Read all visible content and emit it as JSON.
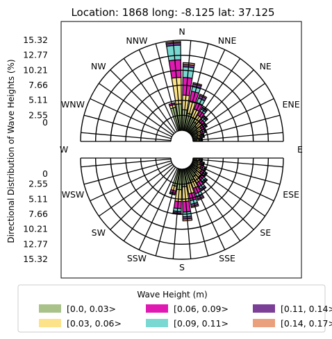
{
  "chart_data": {
    "type": "polar-stacked-bar",
    "title": "Location: 1868 long: -8.125 lat: 37.125",
    "ylabel": "Directional Distribution of Wave Heights (%)",
    "radial_ticks": [
      "0",
      "2.55",
      "5.11",
      "7.66",
      "10.21",
      "12.77",
      "15.32"
    ],
    "radial_max": 15.32,
    "inner_hole_fraction": 0.11,
    "directions": [
      "N",
      "NNE",
      "NE",
      "ENE",
      "E",
      "ESE",
      "SE",
      "SSE",
      "S",
      "SSW",
      "SW",
      "WSW",
      "W",
      "WNW",
      "NW",
      "NNW"
    ],
    "sectors_per_ring": 36,
    "legend": {
      "title": "Wave Height (m)",
      "placement": "bottom",
      "entries": [
        {
          "label": "[0.0, 0.03>",
          "color": "#a8c28a"
        },
        {
          "label": "[0.03, 0.06>",
          "color": "#fce38a"
        },
        {
          "label": "[0.06, 0.09>",
          "color": "#e019b2"
        },
        {
          "label": "[0.09, 0.11>",
          "color": "#79d9d2"
        },
        {
          "label": "[0.11, 0.14>",
          "color": "#7b3f98"
        },
        {
          "label": "[0.14, 0.17>",
          "color": "#eaa07c"
        }
      ]
    },
    "series_colors": [
      "#a8c28a",
      "#fce38a",
      "#e019b2",
      "#79d9d2",
      "#7b3f98",
      "#eaa07c"
    ],
    "top_half_bins": [
      {
        "angle": 345,
        "values": [
          4.0,
          0.5,
          0.3,
          0.0,
          0.0,
          0.0
        ]
      },
      {
        "angle": 355,
        "values": [
          4.5,
          4.5,
          3.0,
          2.5,
          0.4,
          0.2
        ]
      },
      {
        "angle": 5,
        "values": [
          3.5,
          2.5,
          3.0,
          1.8,
          0.4,
          0.3
        ]
      },
      {
        "angle": 15,
        "values": [
          3.0,
          2.0,
          1.8,
          0.8,
          0.5,
          0.2
        ]
      },
      {
        "angle": 25,
        "values": [
          2.5,
          1.5,
          1.2,
          0.8,
          0.5,
          0.2
        ]
      },
      {
        "angle": 35,
        "values": [
          2.0,
          1.3,
          0.8,
          0.4,
          0.3,
          0.1
        ]
      },
      {
        "angle": 45,
        "values": [
          1.5,
          1.0,
          0.6,
          0.4,
          0.3,
          0.1
        ]
      },
      {
        "angle": 55,
        "values": [
          1.2,
          0.8,
          0.5,
          0.3,
          0.2,
          0.1
        ]
      },
      {
        "angle": 65,
        "values": [
          1.0,
          0.6,
          0.4,
          0.3,
          0.2,
          0.1
        ]
      },
      {
        "angle": 75,
        "values": [
          0.8,
          0.5,
          0.3,
          0.2,
          0.1,
          0.1
        ]
      },
      {
        "angle": 85,
        "values": [
          0.6,
          0.4,
          0.2,
          0.2,
          0.1,
          0.1
        ]
      }
    ],
    "bottom_half_bins": [
      {
        "angle": 95,
        "values": [
          0.6,
          0.4,
          0.2,
          0.2,
          0.1,
          0.1
        ]
      },
      {
        "angle": 105,
        "values": [
          0.8,
          0.5,
          0.3,
          0.2,
          0.1,
          0.1
        ]
      },
      {
        "angle": 115,
        "values": [
          1.0,
          0.6,
          0.4,
          0.3,
          0.2,
          0.1
        ]
      },
      {
        "angle": 125,
        "values": [
          1.2,
          0.8,
          0.5,
          0.3,
          0.2,
          0.1
        ]
      },
      {
        "angle": 135,
        "values": [
          1.4,
          1.0,
          0.6,
          0.4,
          0.3,
          0.1
        ]
      },
      {
        "angle": 145,
        "values": [
          1.8,
          1.2,
          0.8,
          0.4,
          0.3,
          0.1
        ]
      },
      {
        "angle": 155,
        "values": [
          2.2,
          1.4,
          1.0,
          0.6,
          0.4,
          0.2
        ]
      },
      {
        "angle": 165,
        "values": [
          2.5,
          1.8,
          1.2,
          0.6,
          0.4,
          0.2
        ]
      },
      {
        "angle": 175,
        "values": [
          3.0,
          2.5,
          1.8,
          0.8,
          0.4,
          0.3
        ]
      },
      {
        "angle": 185,
        "values": [
          3.5,
          2.0,
          1.2,
          0.5,
          0.3,
          0.2
        ]
      },
      {
        "angle": 195,
        "values": [
          3.0,
          0.8,
          0.4,
          0.2,
          0.1,
          0.0
        ]
      }
    ]
  }
}
